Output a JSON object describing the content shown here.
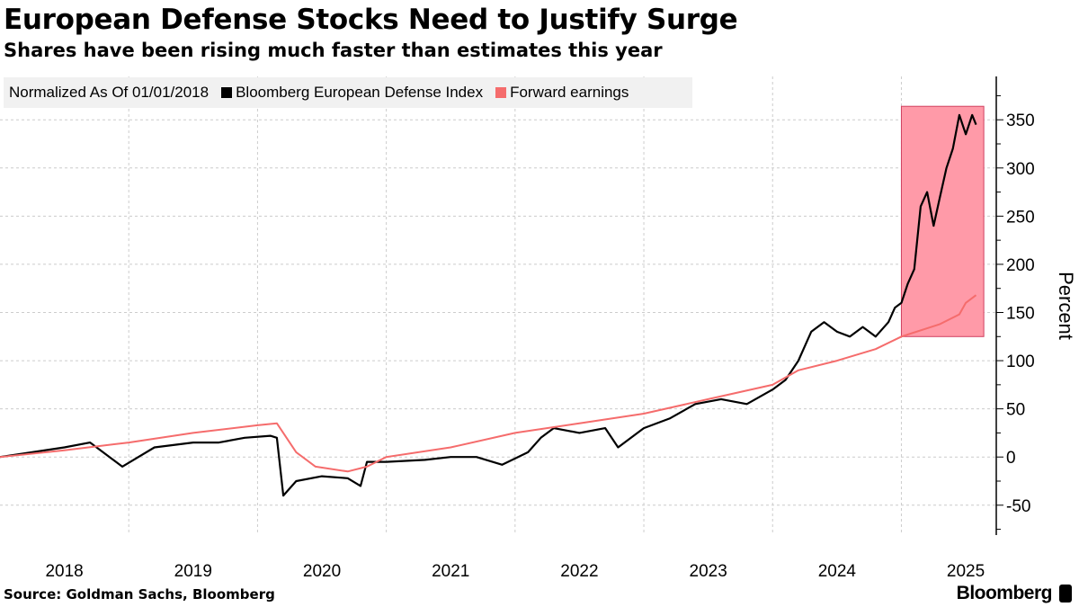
{
  "header": {
    "title": "European Defense Stocks Need to Justify Surge",
    "subtitle": "Shares have been rising much faster than estimates this year"
  },
  "legend": {
    "note": "Normalized As Of 01/01/2018",
    "items": [
      {
        "label": "Bloomberg European Defense Index",
        "color": "#000000"
      },
      {
        "label": "Forward earnings",
        "color": "#f56c6c"
      }
    ]
  },
  "footer": {
    "source": "Source: Goldman Sachs, Bloomberg",
    "logo": "Bloomberg"
  },
  "chart_data": {
    "type": "line",
    "title": "European Defense Stocks Need to Justify Surge",
    "ylabel": "Percent",
    "xlim": [
      2018.0,
      2025.73
    ],
    "ylim": [
      -81,
      395
    ],
    "yticks": [
      -50,
      0,
      50,
      100,
      150,
      200,
      250,
      300,
      350
    ],
    "xtick_labels": [
      "2018",
      "2019",
      "2020",
      "2021",
      "2022",
      "2023",
      "2024",
      "2025"
    ],
    "grid": true,
    "legend_position": "top-left",
    "highlight": {
      "x": [
        2025.0,
        2025.64
      ],
      "y": [
        125,
        364
      ],
      "color": "#ff9aa8"
    },
    "series": [
      {
        "name": "Bloomberg European Defense Index",
        "color": "#000000",
        "x": [
          2018.0,
          2018.25,
          2018.5,
          2018.7,
          2018.8,
          2018.95,
          2019.2,
          2019.5,
          2019.7,
          2019.9,
          2020.1,
          2020.15,
          2020.2,
          2020.3,
          2020.5,
          2020.7,
          2020.8,
          2020.85,
          2021.0,
          2021.3,
          2021.5,
          2021.7,
          2021.9,
          2022.1,
          2022.2,
          2022.3,
          2022.5,
          2022.7,
          2022.8,
          2023.0,
          2023.2,
          2023.4,
          2023.6,
          2023.8,
          2024.0,
          2024.1,
          2024.2,
          2024.3,
          2024.4,
          2024.5,
          2024.6,
          2024.7,
          2024.8,
          2024.9,
          2024.95,
          2025.0,
          2025.05,
          2025.1,
          2025.15,
          2025.2,
          2025.25,
          2025.3,
          2025.35,
          2025.4,
          2025.45,
          2025.5,
          2025.55,
          2025.58
        ],
        "values": [
          0,
          5,
          10,
          15,
          5,
          -10,
          10,
          15,
          15,
          20,
          22,
          20,
          -40,
          -25,
          -20,
          -22,
          -30,
          -5,
          -5,
          -3,
          0,
          0,
          -8,
          5,
          20,
          30,
          25,
          30,
          10,
          30,
          40,
          55,
          60,
          55,
          70,
          80,
          100,
          130,
          140,
          130,
          125,
          135,
          125,
          140,
          155,
          160,
          180,
          195,
          260,
          275,
          240,
          270,
          300,
          320,
          355,
          335,
          355,
          345
        ]
      },
      {
        "name": "Forward earnings",
        "color": "#f56c6c",
        "x": [
          2018.0,
          2018.5,
          2019.0,
          2019.5,
          2020.0,
          2020.15,
          2020.3,
          2020.45,
          2020.7,
          2020.85,
          2021.0,
          2021.5,
          2022.0,
          2022.5,
          2023.0,
          2023.5,
          2024.0,
          2024.2,
          2024.5,
          2024.8,
          2025.0,
          2025.3,
          2025.45,
          2025.5,
          2025.58
        ],
        "values": [
          0,
          7,
          15,
          25,
          33,
          35,
          5,
          -10,
          -15,
          -10,
          0,
          10,
          25,
          35,
          45,
          60,
          75,
          90,
          100,
          112,
          125,
          138,
          148,
          160,
          168
        ]
      }
    ]
  }
}
